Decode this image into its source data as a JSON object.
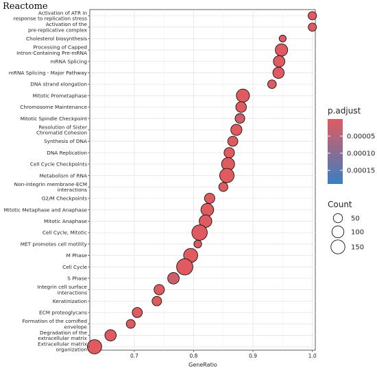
{
  "chart_data": {
    "type": "scatter",
    "title": "Reactome",
    "xlabel": "GeneRatio",
    "ylabel": "",
    "xlim": [
      0.625,
      1.005
    ],
    "xticks": [
      {
        "value": 0.7,
        "label": "0.7"
      },
      {
        "value": 0.8,
        "label": "0.8"
      },
      {
        "value": 0.9,
        "label": "0.9"
      },
      {
        "value": 1.0,
        "label": "1.0"
      }
    ],
    "grid": true,
    "categories": [
      "Activation of ATR in\nresponse to replication stress",
      "Activation of the\npre-replicative complex",
      "Cholesterol biosynthesis",
      "Processing of Capped\nIntron-Containing Pre-mRNA",
      "mRNA Splicing",
      "mRNA Splicing - Major Pathway",
      "DNA strand elongation",
      "Mitotic Prometaphase",
      "Chromosome Maintenance",
      "Mitotic Spindle Checkpoint",
      "Resolution of Sister\nChromatid Cohesion",
      "Synthesis of DNA",
      "DNA Replication",
      "Cell Cycle Checkpoints",
      "Metabolism of RNA",
      "Non-integrin membrane-ECM\ninteractions",
      "G2/M Checkpoints",
      "Mitotic Metaphase and Anaphase",
      "Mitotic Anaphase",
      "Cell Cycle, Mitotic",
      "MET promotes cell motility",
      "M Phase",
      "Cell Cycle",
      "S Phase",
      "Integrin cell surface\ninteractions",
      "Keratinization",
      "ECM proteoglycans",
      "Formation of the cornified\nenvelope",
      "Degradation of the\nextracellular matrix",
      "Extracellular matrix\norganization"
    ],
    "points": [
      {
        "gene_ratio": 1.0,
        "count": 38,
        "p_adjust": 5e-07
      },
      {
        "gene_ratio": 1.0,
        "count": 36,
        "p_adjust": 5e-07
      },
      {
        "gene_ratio": 0.95,
        "count": 22,
        "p_adjust": 1e-06
      },
      {
        "gene_ratio": 0.948,
        "count": 110,
        "p_adjust": 2e-07
      },
      {
        "gene_ratio": 0.944,
        "count": 90,
        "p_adjust": 3e-07
      },
      {
        "gene_ratio": 0.943,
        "count": 87,
        "p_adjust": 3e-07
      },
      {
        "gene_ratio": 0.932,
        "count": 42,
        "p_adjust": 5e-07
      },
      {
        "gene_ratio": 0.883,
        "count": 128,
        "p_adjust": 2e-07
      },
      {
        "gene_ratio": 0.88,
        "count": 75,
        "p_adjust": 4e-07
      },
      {
        "gene_ratio": 0.878,
        "count": 58,
        "p_adjust": 1.8e-05
      },
      {
        "gene_ratio": 0.872,
        "count": 85,
        "p_adjust": 4e-07
      },
      {
        "gene_ratio": 0.866,
        "count": 65,
        "p_adjust": 6e-07
      },
      {
        "gene_ratio": 0.86,
        "count": 70,
        "p_adjust": 5e-07
      },
      {
        "gene_ratio": 0.858,
        "count": 125,
        "p_adjust": 3e-07
      },
      {
        "gene_ratio": 0.856,
        "count": 160,
        "p_adjust": 2e-07
      },
      {
        "gene_ratio": 0.85,
        "count": 48,
        "p_adjust": 9e-07
      },
      {
        "gene_ratio": 0.827,
        "count": 68,
        "p_adjust": 7e-07
      },
      {
        "gene_ratio": 0.823,
        "count": 118,
        "p_adjust": 3e-07
      },
      {
        "gene_ratio": 0.82,
        "count": 116,
        "p_adjust": 3e-07
      },
      {
        "gene_ratio": 0.81,
        "count": 190,
        "p_adjust": 2e-07
      },
      {
        "gene_ratio": 0.807,
        "count": 30,
        "p_adjust": 8e-06
      },
      {
        "gene_ratio": 0.795,
        "count": 152,
        "p_adjust": 4e-07
      },
      {
        "gene_ratio": 0.785,
        "count": 215,
        "p_adjust": 3e-07
      },
      {
        "gene_ratio": 0.766,
        "count": 92,
        "p_adjust": 1.8e-05
      },
      {
        "gene_ratio": 0.742,
        "count": 70,
        "p_adjust": 1.5e-06
      },
      {
        "gene_ratio": 0.738,
        "count": 55,
        "p_adjust": 2e-06
      },
      {
        "gene_ratio": 0.705,
        "count": 64,
        "p_adjust": 1.2e-06
      },
      {
        "gene_ratio": 0.694,
        "count": 45,
        "p_adjust": 2e-06
      },
      {
        "gene_ratio": 0.66,
        "count": 88,
        "p_adjust": 1.2e-06
      },
      {
        "gene_ratio": 0.633,
        "count": 158,
        "p_adjust": 6e-07
      }
    ],
    "color_legend": {
      "title": "p.adjust",
      "low_color": "#e05b60",
      "high_color": "#3a7ec2",
      "range": [
        0,
        0.00019
      ],
      "ticks": [
        {
          "value": 5e-05,
          "label": "0.00005"
        },
        {
          "value": 0.0001,
          "label": "0.00010"
        },
        {
          "value": 0.00015,
          "label": "0.00015"
        }
      ]
    },
    "size_legend": {
      "title": "Count",
      "entries": [
        {
          "value": 50,
          "label": "50"
        },
        {
          "value": 100,
          "label": "100"
        },
        {
          "value": 150,
          "label": "150"
        }
      ]
    },
    "legend_position": "right"
  }
}
